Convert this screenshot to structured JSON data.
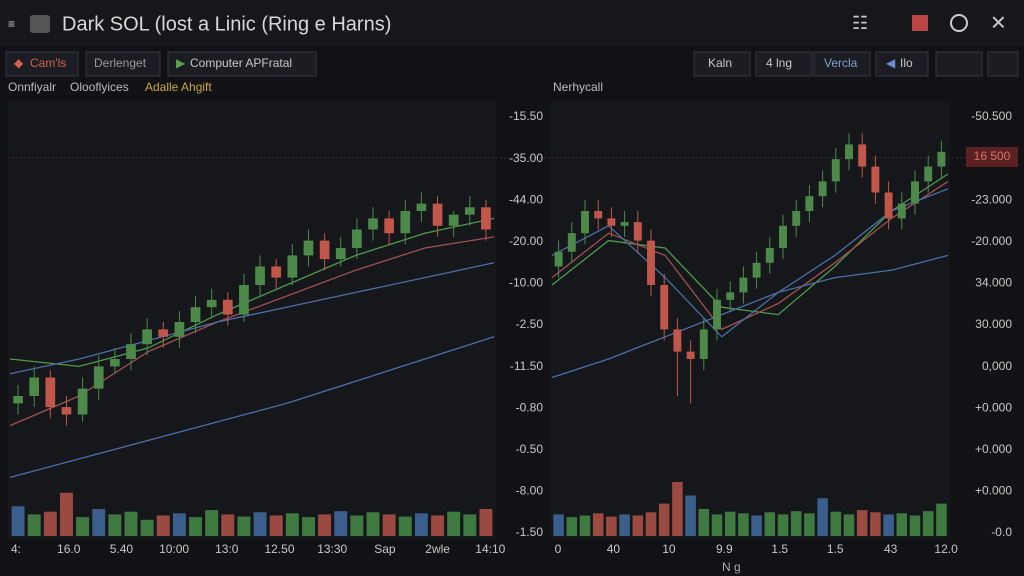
{
  "header": {
    "title": "Dark SOL (lost a Linic (Ring e Harns)"
  },
  "toolbar": {
    "left": [
      "Cam'ls",
      "Derlenget",
      "Computer APFratal"
    ],
    "right": [
      "Kaln",
      "4 lng",
      "Vercla",
      "Ilo"
    ]
  },
  "highlight_label": "16 500",
  "x_axis_title": "N g",
  "charts": [
    {
      "legend": [
        "Onnfiyalr",
        "Olooflyices",
        "Adalle Ahgift"
      ],
      "y_axis_labels": [
        "-15.50",
        "-35.00",
        "-44.00",
        "-20.00",
        "-10.00",
        "-2.50",
        "-11.50",
        "-0.80",
        "-0.50",
        "-8.00",
        "-1.50"
      ],
      "x_axis_labels": [
        "4:",
        "16.0",
        "5.40",
        "10:00",
        "13:0",
        "12.50",
        "13:30",
        "Sap",
        "2wle",
        "14:10"
      ],
      "ylim": [
        0,
        100
      ],
      "vlim": [
        0,
        100
      ],
      "open": [
        18,
        20,
        25,
        17,
        15,
        22,
        28,
        30,
        34,
        38,
        36,
        40,
        44,
        46,
        42,
        50,
        55,
        52,
        58,
        62,
        57,
        60,
        65,
        68,
        64,
        70,
        72,
        66,
        69,
        71
      ],
      "close": [
        20,
        25,
        17,
        15,
        22,
        28,
        30,
        34,
        38,
        36,
        40,
        44,
        46,
        42,
        50,
        55,
        52,
        58,
        62,
        57,
        60,
        65,
        68,
        64,
        70,
        72,
        66,
        69,
        71,
        65
      ],
      "high": [
        23,
        28,
        27,
        20,
        25,
        31,
        33,
        37,
        41,
        40,
        43,
        47,
        49,
        48,
        53,
        58,
        57,
        61,
        65,
        64,
        63,
        68,
        71,
        70,
        73,
        75,
        74,
        70,
        74,
        73
      ],
      "low": [
        15,
        17,
        14,
        12,
        13,
        19,
        26,
        27,
        31,
        33,
        33,
        37,
        41,
        39,
        40,
        47,
        49,
        50,
        55,
        54,
        55,
        57,
        62,
        61,
        61,
        67,
        63,
        63,
        66,
        62
      ],
      "volume": [
        55,
        40,
        45,
        80,
        35,
        50,
        40,
        45,
        30,
        38,
        42,
        35,
        48,
        40,
        36,
        44,
        38,
        42,
        35,
        40,
        46,
        38,
        44,
        40,
        36,
        42,
        38,
        45,
        40,
        50
      ],
      "lines": [
        {
          "color": "#4f9a4a",
          "values": [
            30,
            28,
            33,
            42,
            50,
            58,
            64,
            68
          ]
        },
        {
          "color": "#a05050",
          "values": [
            12,
            20,
            32,
            40,
            47,
            54,
            60,
            63
          ]
        },
        {
          "color": "#4a6fa8",
          "values": [
            26,
            30,
            35,
            40,
            44,
            48,
            52,
            56
          ]
        },
        {
          "color": "#4a6fa8",
          "values": [
            -2,
            3,
            8,
            13,
            18,
            24,
            30,
            36
          ]
        }
      ]
    },
    {
      "legend": [
        "Nerhycall"
      ],
      "y_axis_labels": [
        "-50.500",
        "",
        "-23.000",
        "-20.000",
        "34.000",
        "30.000",
        "0,000",
        "+0.000",
        "+0.000",
        "+0.000",
        "-0.0"
      ],
      "x_axis_labels": [
        "0",
        "40",
        "10",
        "9.9",
        "1.5",
        "1.5",
        "43",
        "12.0"
      ],
      "ylim": [
        0,
        100
      ],
      "vlim": [
        0,
        100
      ],
      "open": [
        55,
        59,
        64,
        70,
        68,
        66,
        67,
        62,
        50,
        38,
        32,
        30,
        38,
        46,
        48,
        52,
        56,
        60,
        66,
        70,
        74,
        78,
        84,
        88,
        82,
        75,
        68,
        72,
        78,
        82
      ],
      "close": [
        59,
        64,
        70,
        68,
        66,
        67,
        62,
        50,
        38,
        32,
        30,
        38,
        46,
        48,
        52,
        56,
        60,
        66,
        70,
        74,
        78,
        84,
        88,
        82,
        75,
        68,
        72,
        78,
        82,
        86
      ],
      "high": [
        62,
        67,
        73,
        73,
        71,
        70,
        70,
        65,
        53,
        41,
        35,
        41,
        49,
        51,
        55,
        59,
        63,
        69,
        73,
        77,
        81,
        87,
        91,
        91,
        85,
        78,
        75,
        81,
        85,
        89
      ],
      "low": [
        52,
        56,
        61,
        65,
        63,
        63,
        59,
        47,
        35,
        20,
        18,
        27,
        35,
        43,
        45,
        49,
        53,
        57,
        63,
        67,
        71,
        75,
        81,
        79,
        72,
        65,
        65,
        69,
        75,
        79
      ],
      "volume": [
        40,
        35,
        38,
        42,
        36,
        40,
        38,
        44,
        60,
        100,
        75,
        50,
        40,
        45,
        42,
        38,
        44,
        40,
        46,
        42,
        70,
        45,
        40,
        48,
        44,
        40,
        42,
        38,
        46,
        60
      ],
      "lines": [
        {
          "color": "#4f9a4a",
          "values": [
            50,
            62,
            60,
            44,
            42,
            55,
            70,
            80
          ]
        },
        {
          "color": "#a05050",
          "values": [
            52,
            64,
            58,
            38,
            45,
            56,
            68,
            78
          ]
        },
        {
          "color": "#4a6fa8",
          "values": [
            58,
            66,
            52,
            36,
            48,
            58,
            70,
            76
          ]
        },
        {
          "color": "#4a6fa8",
          "values": [
            25,
            30,
            36,
            42,
            48,
            52,
            54,
            58
          ]
        }
      ]
    }
  ]
}
